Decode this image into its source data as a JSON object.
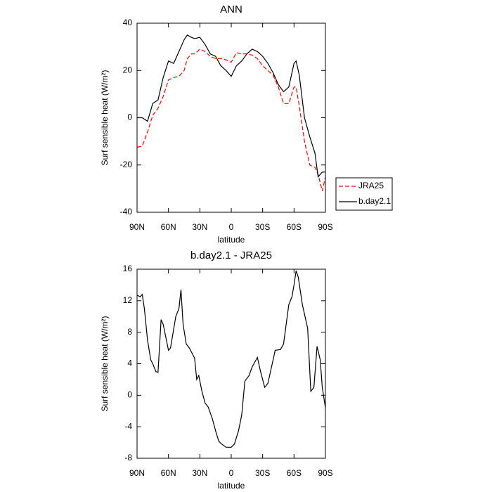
{
  "chart_data": [
    {
      "type": "line",
      "title": "ANN",
      "xlabel": "latitude",
      "ylabel": "Surf sensible heat (W/m²)",
      "x": [
        90,
        85,
        80,
        75,
        70,
        65,
        60,
        55,
        50,
        45,
        42,
        38,
        35,
        30,
        25,
        20,
        15,
        10,
        5,
        0,
        -5,
        -10,
        -15,
        -20,
        -25,
        -30,
        -35,
        -40,
        -45,
        -50,
        -55,
        -60,
        -62,
        -65,
        -70,
        -75,
        -80,
        -83,
        -87,
        -90
      ],
      "series": [
        {
          "name": "JRA25",
          "color": "#ff0000",
          "style": "dashed",
          "values": [
            -12.5,
            -12,
            -6,
            1,
            4,
            9,
            16,
            17,
            17.5,
            20,
            25,
            27,
            27,
            29,
            28,
            26,
            25,
            25,
            24.5,
            23.5,
            27.5,
            27,
            27,
            26.5,
            25,
            22,
            20,
            18,
            13,
            6,
            6,
            13,
            13,
            5,
            -10,
            -20,
            -21,
            -24,
            -31,
            -25
          ]
        },
        {
          "name": "b.day2.1",
          "color": "#000000",
          "style": "solid",
          "values": [
            0,
            0,
            -1.5,
            6,
            7.5,
            17,
            24,
            23,
            28,
            33,
            35,
            34,
            33.5,
            34,
            31,
            27,
            26,
            22,
            20,
            17.5,
            22,
            24,
            27,
            29,
            28,
            26,
            23,
            19,
            14,
            11,
            13,
            23,
            24,
            18,
            0,
            -8,
            -15,
            -25,
            -23,
            -23
          ]
        }
      ],
      "xlim": [
        90,
        -90
      ],
      "xticks": [
        {
          "value": 90,
          "label": "90N"
        },
        {
          "value": 60,
          "label": "60N"
        },
        {
          "value": 30,
          "label": "30N"
        },
        0,
        {
          "value": -30,
          "label": "30S"
        },
        {
          "value": -60,
          "label": "60S"
        },
        {
          "value": -90,
          "label": "90S"
        }
      ],
      "ylim": [
        -40,
        40
      ],
      "yticks": [
        -40,
        -20,
        0,
        20,
        40
      ],
      "legend": "outside-right"
    },
    {
      "type": "line",
      "title": "b.day2.1 - JRA25",
      "xlabel": "latitude",
      "ylabel": "Surf sensible heat (W/m²)",
      "x": [
        90,
        87,
        85,
        83,
        80,
        77,
        75,
        72,
        70,
        67,
        65,
        60,
        58,
        53,
        50,
        48,
        46,
        43,
        40,
        35,
        33,
        31,
        28,
        25,
        22,
        18,
        15,
        12,
        10,
        5,
        0,
        -3,
        -7,
        -10,
        -13,
        -17,
        -20,
        -25,
        -28,
        -32,
        -35,
        -40,
        -42,
        -47,
        -50,
        -55,
        -58,
        -60,
        -62,
        -64,
        -68,
        -73,
        -76,
        -79,
        -82,
        -85,
        -87,
        -90
      ],
      "series": [
        {
          "color": "#000000",
          "style": "solid",
          "values": [
            12.7,
            12.5,
            12.8,
            11,
            7,
            4.5,
            4,
            3,
            2.9,
            9.6,
            9,
            5.7,
            6,
            10,
            11,
            13.4,
            9,
            6.5,
            6,
            4.7,
            2,
            2.5,
            0.5,
            -1,
            -1.5,
            -3,
            -4.5,
            -5.8,
            -6.1,
            -6.6,
            -6.6,
            -6.2,
            -4.5,
            -2.5,
            1.8,
            2.5,
            3.6,
            4.8,
            3,
            1,
            1.5,
            4.5,
            5.7,
            5.8,
            6.5,
            11.5,
            12.5,
            14,
            15.8,
            15,
            11.5,
            8.5,
            0.5,
            1,
            6.2,
            4.5,
            1,
            -1.6
          ]
        }
      ],
      "xlim": [
        90,
        -90
      ],
      "xticks": [
        {
          "value": 90,
          "label": "90N"
        },
        {
          "value": 60,
          "label": "60N"
        },
        {
          "value": 30,
          "label": "30N"
        },
        0,
        {
          "value": -30,
          "label": "30S"
        },
        {
          "value": -60,
          "label": "60S"
        },
        {
          "value": -90,
          "label": "90S"
        }
      ],
      "ylim": [
        -8,
        16
      ],
      "yticks": [
        -8,
        -4,
        0,
        4,
        8,
        12,
        16
      ]
    }
  ]
}
